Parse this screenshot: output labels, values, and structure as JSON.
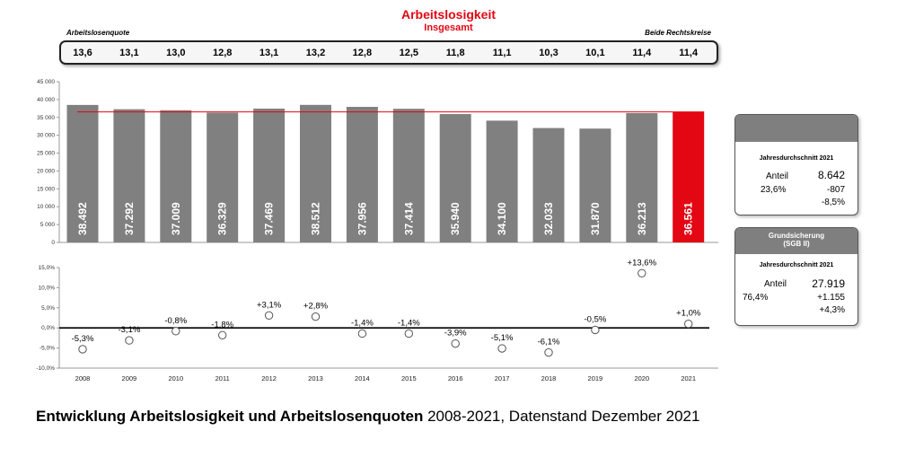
{
  "header": {
    "title": "Arbeitslosigkeit",
    "subtitle": "Insgesamt",
    "quota_label": "Arbeitslosenquote",
    "scope_label": "Beide Rechtskreise"
  },
  "quotas": [
    "13,6",
    "13,1",
    "13,0",
    "12,8",
    "13,1",
    "13,2",
    "12,8",
    "12,5",
    "11,8",
    "11,1",
    "10,3",
    "10,1",
    "11,4",
    "11,4"
  ],
  "chart_data": [
    {
      "type": "bar",
      "categories": [
        "2008",
        "2009",
        "2010",
        "2011",
        "2012",
        "2013",
        "2014",
        "2015",
        "2016",
        "2017",
        "2018",
        "2019",
        "2020",
        "2021"
      ],
      "values": [
        38492,
        37292,
        37009,
        36329,
        37469,
        38512,
        37956,
        37414,
        35940,
        34100,
        32033,
        31870,
        36213,
        36561
      ],
      "labels": [
        "38.492",
        "37.292",
        "37.009",
        "36.329",
        "37.469",
        "38.512",
        "37.956",
        "37.414",
        "35.940",
        "34.100",
        "32.033",
        "31.870",
        "36.213",
        "36.561"
      ],
      "ylim": [
        0,
        45000
      ],
      "yticks": [
        0,
        5000,
        10000,
        15000,
        20000,
        25000,
        30000,
        35000,
        40000,
        45000
      ],
      "ytick_labels": [
        "0",
        "5 000",
        "10 000",
        "15 000",
        "20 000",
        "25 000",
        "30 000",
        "35 000",
        "40 000",
        "45 000"
      ],
      "reference_line": 36561,
      "colors": {
        "bar": "#808080",
        "highlight": "#e30613",
        "reference_line": "#e30613"
      },
      "highlight_index": 13
    },
    {
      "type": "scatter",
      "categories": [
        "2008",
        "2009",
        "2010",
        "2011",
        "2012",
        "2013",
        "2014",
        "2015",
        "2016",
        "2017",
        "2018",
        "2019",
        "2020",
        "2021"
      ],
      "values": [
        -5.3,
        -3.1,
        -0.8,
        -1.8,
        3.1,
        2.8,
        -1.4,
        -1.4,
        -3.9,
        -5.1,
        -6.1,
        -0.5,
        13.6,
        1.0
      ],
      "labels": [
        "-5,3%",
        "-3,1%",
        "-0,8%",
        "-1,8%",
        "+3,1%",
        "+2,8%",
        "-1,4%",
        "-1,4%",
        "-3,9%",
        "-5,1%",
        "-6,1%",
        "-0,5%",
        "+13,6%",
        "+1,0%"
      ],
      "ylim": [
        -10,
        15
      ],
      "yticks": [
        -10,
        -5,
        0,
        5,
        10,
        15
      ],
      "ytick_labels": [
        "-10,0%",
        "-5,0%",
        "0,0%",
        "5,0%",
        "10,0%",
        "15,0%"
      ]
    }
  ],
  "panel_total": {
    "heading": "Jahresdurchschnitt 2021",
    "anteil_label": "Anteil",
    "anteil_value": "23,6%",
    "value": "8.642",
    "change_abs": "-807",
    "change_pct": "-8,5%"
  },
  "panel_sgb": {
    "title_line1": "Grundsicherung",
    "title_line2": "(SGB II)",
    "heading": "Jahresdurchschnitt 2021",
    "anteil_label": "Anteil",
    "anteil_value": "76,4%",
    "value": "27.919",
    "change_abs": "+1.155",
    "change_pct": "+4,3%"
  },
  "caption": {
    "bold": "Entwicklung Arbeitslosigkeit und Arbeitslosenquoten",
    "rest": " 2008-2021, Datenstand Dezember 2021"
  }
}
